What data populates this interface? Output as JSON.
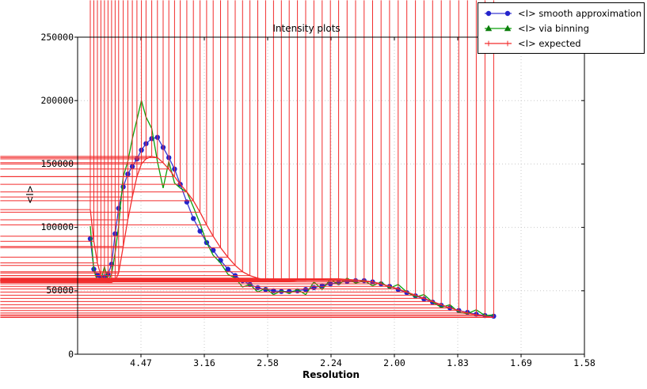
{
  "figure": {
    "background": "#ffffff",
    "frame_color": "#000000",
    "grid_color": "#c9c9c9"
  },
  "chart_data": {
    "type": "line",
    "title": "Intensity plots",
    "xlabel": "Resolution",
    "ylabel": "<I>",
    "grid": true,
    "legend_position": "top-right",
    "x_axis": {
      "note": "Resolution axis: tick labels are d-spacings, axis linear in 1/d^2",
      "tick_labels": [
        "4.47",
        "3.16",
        "2.58",
        "2.24",
        "2.00",
        "1.83",
        "1.69",
        "1.58"
      ],
      "tick_positions_inv_d2": [
        0.05,
        0.1,
        0.15,
        0.2,
        0.25,
        0.3,
        0.35,
        0.4
      ],
      "range_inv_d2": [
        0.0,
        0.4
      ]
    },
    "y_axis": {
      "tick_labels": [
        "0",
        "50000",
        "100000",
        "150000",
        "200000",
        "250000"
      ],
      "tick_values": [
        0,
        50000,
        100000,
        150000,
        200000,
        250000
      ],
      "range": [
        0,
        250000
      ]
    },
    "x_inv_d2": [
      0.01,
      0.0128,
      0.0156,
      0.0184,
      0.0212,
      0.024,
      0.0268,
      0.0296,
      0.0324,
      0.036,
      0.0396,
      0.0432,
      0.0468,
      0.0504,
      0.054,
      0.0585,
      0.063,
      0.0675,
      0.072,
      0.0765,
      0.081,
      0.0862,
      0.0914,
      0.0966,
      0.1018,
      0.107,
      0.1128,
      0.1186,
      0.1244,
      0.1302,
      0.136,
      0.1422,
      0.1484,
      0.1546,
      0.1608,
      0.167,
      0.1735,
      0.18,
      0.1865,
      0.193,
      0.1995,
      0.206,
      0.2127,
      0.2194,
      0.2261,
      0.2328,
      0.2395,
      0.2462,
      0.253,
      0.2598,
      0.2666,
      0.2734,
      0.2802,
      0.287,
      0.2939,
      0.3008,
      0.3077,
      0.3146,
      0.3215,
      0.3284
    ],
    "series": [
      {
        "name": "<I> smooth approximation",
        "marker": "circle",
        "line_color": "#3a3ad2",
        "marker_color": "#2424cc",
        "values": [
          91000,
          67000,
          62500,
          60500,
          61000,
          63000,
          71000,
          95000,
          115000,
          132000,
          142000,
          148000,
          154000,
          161000,
          166000,
          170000,
          171000,
          163000,
          155000,
          146000,
          134000,
          120000,
          107000,
          97000,
          88000,
          82000,
          74000,
          67000,
          62000,
          58000,
          55000,
          52500,
          51000,
          50000,
          49500,
          49500,
          50000,
          51000,
          52500,
          54000,
          55500,
          56500,
          57500,
          58000,
          58000,
          57000,
          55500,
          53500,
          51000,
          48500,
          46000,
          43500,
          41000,
          38500,
          36500,
          34500,
          33000,
          31500,
          30500,
          30000
        ]
      },
      {
        "name": "<I> via binning",
        "marker": "triangle-up",
        "line_color": "#0aa00a",
        "marker_color": "#0b7d0b",
        "values": [
          101000,
          66000,
          58000,
          58500,
          69000,
          58000,
          63000,
          80000,
          101000,
          140000,
          152000,
          170000,
          185000,
          200000,
          187000,
          178000,
          152000,
          131000,
          152000,
          135000,
          131000,
          128000,
          116000,
          103000,
          88000,
          78000,
          72000,
          63000,
          60000,
          53000,
          55000,
          49000,
          52000,
          47000,
          50000,
          48000,
          51000,
          47000,
          57000,
          51000,
          59000,
          55000,
          60000,
          56000,
          58000,
          54000,
          57000,
          52000,
          55000,
          49000,
          45000,
          47000,
          41000,
          37000,
          39000,
          33000,
          32000,
          35000,
          30500,
          31000
        ]
      },
      {
        "name": "<I> expected",
        "marker": "plus",
        "line_color": "#f22c2c",
        "marker_color": "#f22c2c",
        "values": [
          114000,
          89000,
          72000,
          62000,
          58000,
          56500,
          56500,
          58000,
          64000,
          85000,
          106000,
          124000,
          140000,
          150000,
          154000,
          156000,
          155000,
          151000,
          146000,
          140000,
          134000,
          128000,
          121000,
          112000,
          102000,
          93000,
          84000,
          76500,
          70000,
          65000,
          62000,
          60000,
          58500,
          58000,
          57500,
          57500,
          58000,
          58000,
          58500,
          59000,
          59500,
          59500,
          59000,
          58500,
          58000,
          57000,
          55500,
          53500,
          51500,
          49000,
          46500,
          44000,
          41500,
          39000,
          36500,
          34500,
          32500,
          31000,
          30000,
          29000
        ]
      }
    ]
  }
}
